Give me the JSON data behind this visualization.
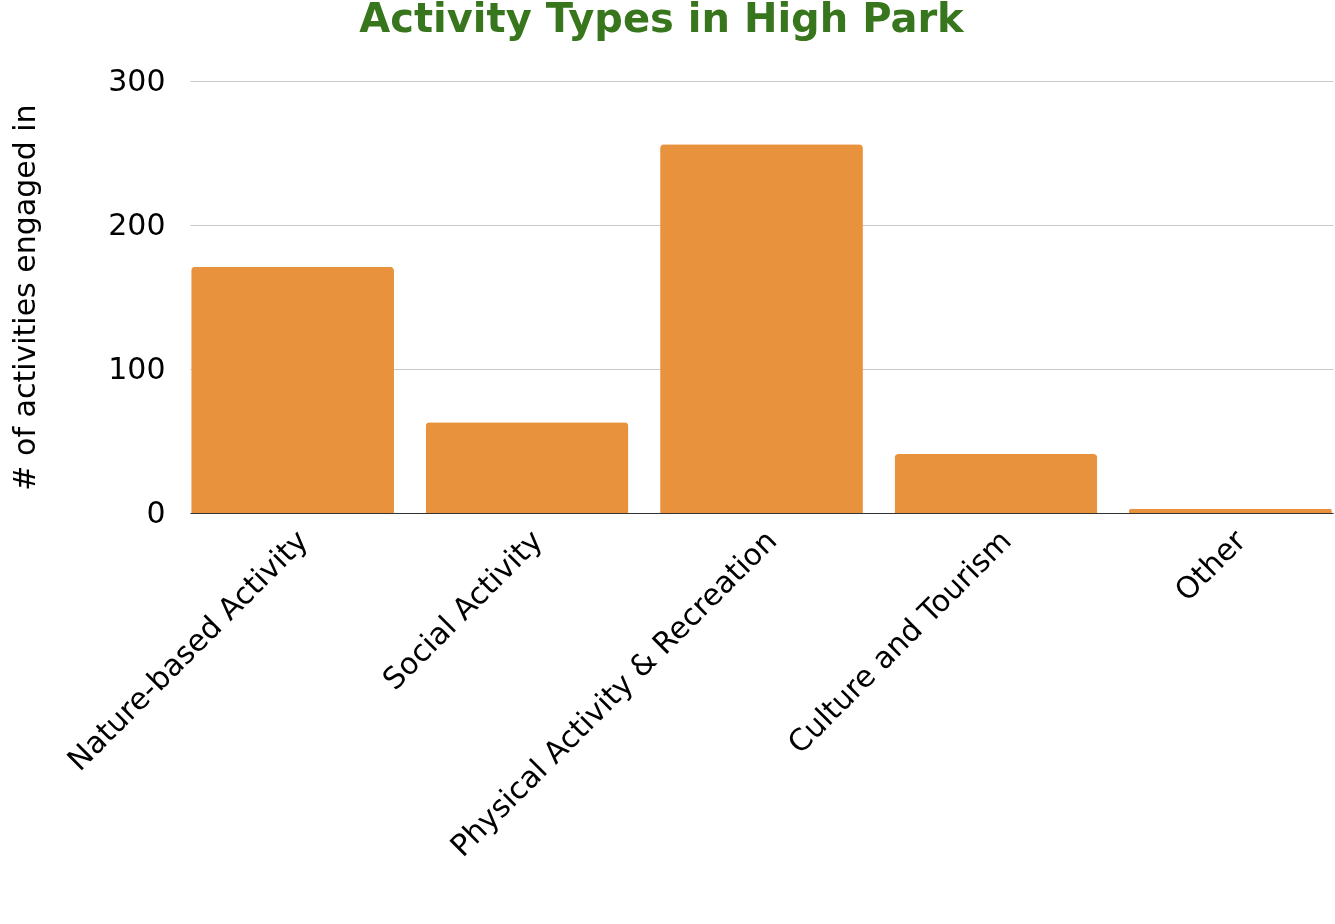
{
  "chart_data": {
    "type": "bar",
    "title": "Activity Types in High Park",
    "ylabel": "# of activities engaged in",
    "categories": [
      "Nature-based Activity",
      "Social Activity",
      "Physical Activity & Recreation",
      "Culture and Tourism",
      "Other"
    ],
    "values": [
      171,
      63,
      256,
      41,
      3
    ],
    "color": "#e8923d",
    "ylim": [
      0,
      300
    ],
    "yticks": [
      0,
      100,
      200,
      300
    ],
    "grid": "y"
  }
}
